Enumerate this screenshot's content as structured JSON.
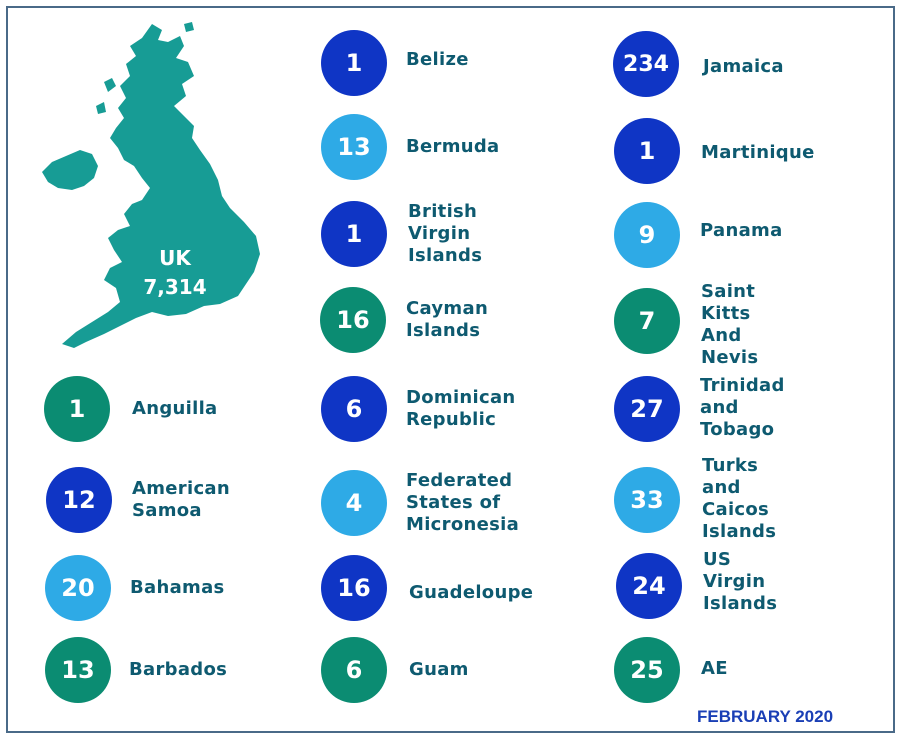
{
  "uk": {
    "name": "UK",
    "count": "7,314"
  },
  "footer": "FEBRUARY 2020",
  "colors": {
    "dark": "#0f35c5",
    "light": "#2eaae6",
    "green": "#0b8c72",
    "text": "#0e5a70",
    "map": "#179c95"
  },
  "entries": [
    {
      "count": "1",
      "name": "Anguilla",
      "color": "green"
    },
    {
      "count": "12",
      "name": "American\nSamoa",
      "color": "dark"
    },
    {
      "count": "20",
      "name": "Bahamas",
      "color": "light"
    },
    {
      "count": "13",
      "name": "Barbados",
      "color": "green"
    },
    {
      "count": "1",
      "name": "Belize",
      "color": "dark"
    },
    {
      "count": "13",
      "name": "Bermuda",
      "color": "light"
    },
    {
      "count": "1",
      "name": "British Virgin\nIslands",
      "color": "dark"
    },
    {
      "count": "16",
      "name": "Cayman\nIslands",
      "color": "green"
    },
    {
      "count": "6",
      "name": "Dominican\nRepublic",
      "color": "dark"
    },
    {
      "count": "4",
      "name": "Federated\nStates of\nMicronesia",
      "color": "light"
    },
    {
      "count": "16",
      "name": "Guadeloupe",
      "color": "dark"
    },
    {
      "count": "6",
      "name": "Guam",
      "color": "green"
    },
    {
      "count": "234",
      "name": "Jamaica",
      "color": "dark"
    },
    {
      "count": "1",
      "name": "Martinique",
      "color": "dark"
    },
    {
      "count": "9",
      "name": "Panama",
      "color": "light"
    },
    {
      "count": "7",
      "name": "Saint Kitts\nAnd Nevis",
      "color": "green"
    },
    {
      "count": "27",
      "name": "Trinidad\nand Tobago",
      "color": "dark"
    },
    {
      "count": "33",
      "name": "Turks and\nCaicos Islands",
      "color": "light"
    },
    {
      "count": "24",
      "name": "US Virgin\nIslands",
      "color": "dark"
    },
    {
      "count": "25",
      "name": "AE",
      "color": "green"
    }
  ]
}
